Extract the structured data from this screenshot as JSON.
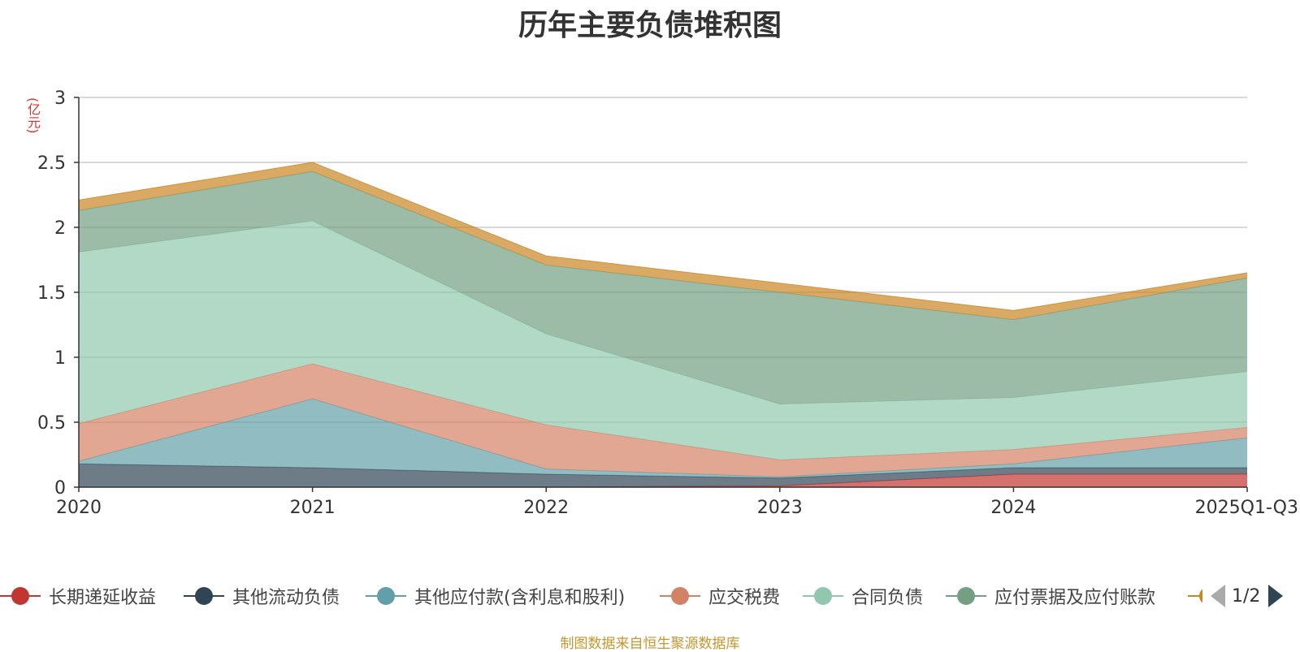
{
  "chart_data": {
    "type": "area",
    "stacked": true,
    "title": "历年主要负债堆积图",
    "ylabel": "(亿元)",
    "ylim": [
      0,
      3
    ],
    "yticks": [
      "0",
      "0.5",
      "1",
      "1.5",
      "2",
      "2.5",
      "3"
    ],
    "categories": [
      "2020",
      "2021",
      "2022",
      "2023",
      "2024",
      "2025Q1-Q3"
    ],
    "grid": true,
    "legend_position": "bottom",
    "series": [
      {
        "name": "长期递延收益",
        "color": "#c23531",
        "values": [
          0,
          0,
          0,
          0.01,
          0.1,
          0.1
        ]
      },
      {
        "name": "其他流动负债",
        "color": "#2f4554",
        "values": [
          0.18,
          0.15,
          0.1,
          0.06,
          0.05,
          0.05
        ]
      },
      {
        "name": "其他应付款(含利息和股利)",
        "color": "#61a0a8",
        "values": [
          0.02,
          0.53,
          0.04,
          0.01,
          0.03,
          0.23
        ]
      },
      {
        "name": "应交税费",
        "color": "#d48265",
        "values": [
          0.29,
          0.27,
          0.34,
          0.13,
          0.11,
          0.08
        ]
      },
      {
        "name": "合同负债",
        "color": "#91c7ae",
        "values": [
          1.32,
          1.1,
          0.7,
          0.43,
          0.4,
          0.43
        ]
      },
      {
        "name": "应付票据及应付账款",
        "color": "#749f83",
        "values": [
          0.32,
          0.38,
          0.53,
          0.86,
          0.6,
          0.72
        ]
      },
      {
        "name": "",
        "color": "#ca8622",
        "values": [
          0.08,
          0.07,
          0.07,
          0.07,
          0.07,
          0.04
        ]
      }
    ],
    "legend_page": "1/2",
    "footer": "制图数据来自恒生聚源数据库"
  }
}
